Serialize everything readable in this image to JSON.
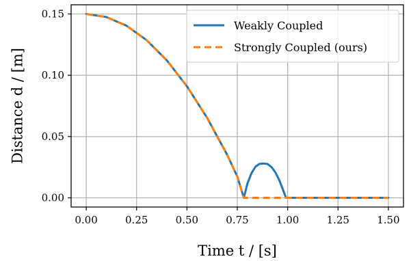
{
  "chart_data": {
    "type": "line",
    "xlabel": "Time t / [s]",
    "ylabel": "Distance d / [m]",
    "xlim": [
      -0.075,
      1.575
    ],
    "ylim": [
      -0.0075,
      0.1575
    ],
    "xticks": [
      0.0,
      0.25,
      0.5,
      0.75,
      1.0,
      1.25,
      1.5
    ],
    "xtick_labels": [
      "0.00",
      "0.25",
      "0.50",
      "0.75",
      "1.00",
      "1.25",
      "1.50"
    ],
    "yticks": [
      0.0,
      0.05,
      0.1,
      0.15
    ],
    "ytick_labels": [
      "0.00",
      "0.05",
      "0.10",
      "0.15"
    ],
    "grid": true,
    "legend_position": "top-right",
    "series": [
      {
        "name": "Weakly Coupled",
        "color": "#1f77b4",
        "style": "solid",
        "x": [
          0.0,
          0.1,
          0.2,
          0.3,
          0.4,
          0.5,
          0.6,
          0.7,
          0.75,
          0.7825,
          0.8,
          0.82,
          0.84,
          0.86,
          0.88,
          0.9,
          0.92,
          0.94,
          0.96,
          0.98,
          0.9915,
          1.0,
          1.1,
          1.2,
          1.3,
          1.4,
          1.5
        ],
        "y": [
          0.15,
          0.1475,
          0.1404,
          0.1286,
          0.1122,
          0.091,
          0.0653,
          0.035,
          0.0174,
          0.0,
          0.0115,
          0.02,
          0.0254,
          0.0277,
          0.028,
          0.0276,
          0.0251,
          0.0205,
          0.0138,
          0.0052,
          0.0,
          0.0,
          0.0,
          0.0,
          0.0,
          0.0,
          0.0
        ]
      },
      {
        "name": "Strongly Coupled (ours)",
        "color": "#ff7f0e",
        "style": "dashed",
        "x": [
          0.0,
          0.1,
          0.2,
          0.3,
          0.4,
          0.5,
          0.6,
          0.7,
          0.75,
          0.7825,
          0.9,
          1.0,
          1.1,
          1.2,
          1.3,
          1.4,
          1.5
        ],
        "y": [
          0.15,
          0.1475,
          0.1404,
          0.1286,
          0.1122,
          0.091,
          0.0653,
          0.035,
          0.0174,
          0.0,
          0.0,
          0.0,
          0.0,
          0.0,
          0.0,
          0.0,
          0.0
        ]
      }
    ]
  }
}
